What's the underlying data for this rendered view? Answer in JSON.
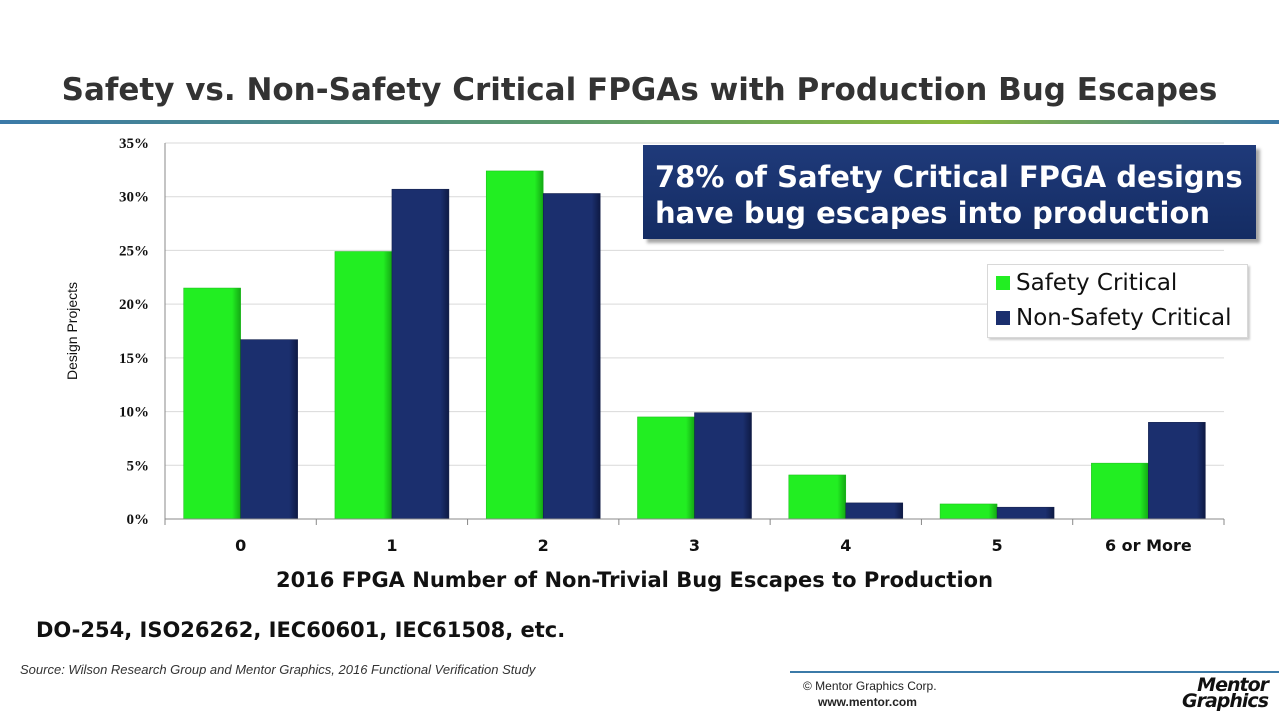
{
  "slide": {
    "title": "Safety vs. Non-Safety Critical FPGAs with Production Bug Escapes",
    "callout_line1": "78% of Safety Critical FPGA designs",
    "callout_line2": "have bug escapes into production",
    "standards": "DO-254, ISO26262, IEC60601, IEC61508, etc.",
    "source": "Source:  Wilson Research Group and Mentor Graphics, 2016 Functional Verification Study",
    "copyright": "© Mentor Graphics Corp.",
    "website": "www.mentor.com",
    "logo_line1": "Mentor",
    "logo_line2": "Graphics"
  },
  "colors": {
    "safety": "#22ee22",
    "non_safety": "#1b2f6e",
    "accent_rule": "#3b7aa8"
  },
  "chart_data": {
    "type": "bar",
    "xlabel": "2016 FPGA Number of Non-Trivial Bug Escapes to Production",
    "ylabel": "Design Projects",
    "categories": [
      "0",
      "1",
      "2",
      "3",
      "4",
      "5",
      "6 or More"
    ],
    "ylim": [
      0,
      35
    ],
    "yticks": [
      "0%",
      "5%",
      "10%",
      "15%",
      "20%",
      "25%",
      "30%",
      "35%"
    ],
    "grid": true,
    "legend_position": "right",
    "series": [
      {
        "name": "Safety Critical",
        "values": [
          21.5,
          24.9,
          32.4,
          9.5,
          4.1,
          1.4,
          5.2
        ]
      },
      {
        "name": "Non-Safety Critical",
        "values": [
          16.7,
          30.7,
          30.3,
          9.9,
          1.5,
          1.1,
          9.0
        ]
      }
    ]
  }
}
